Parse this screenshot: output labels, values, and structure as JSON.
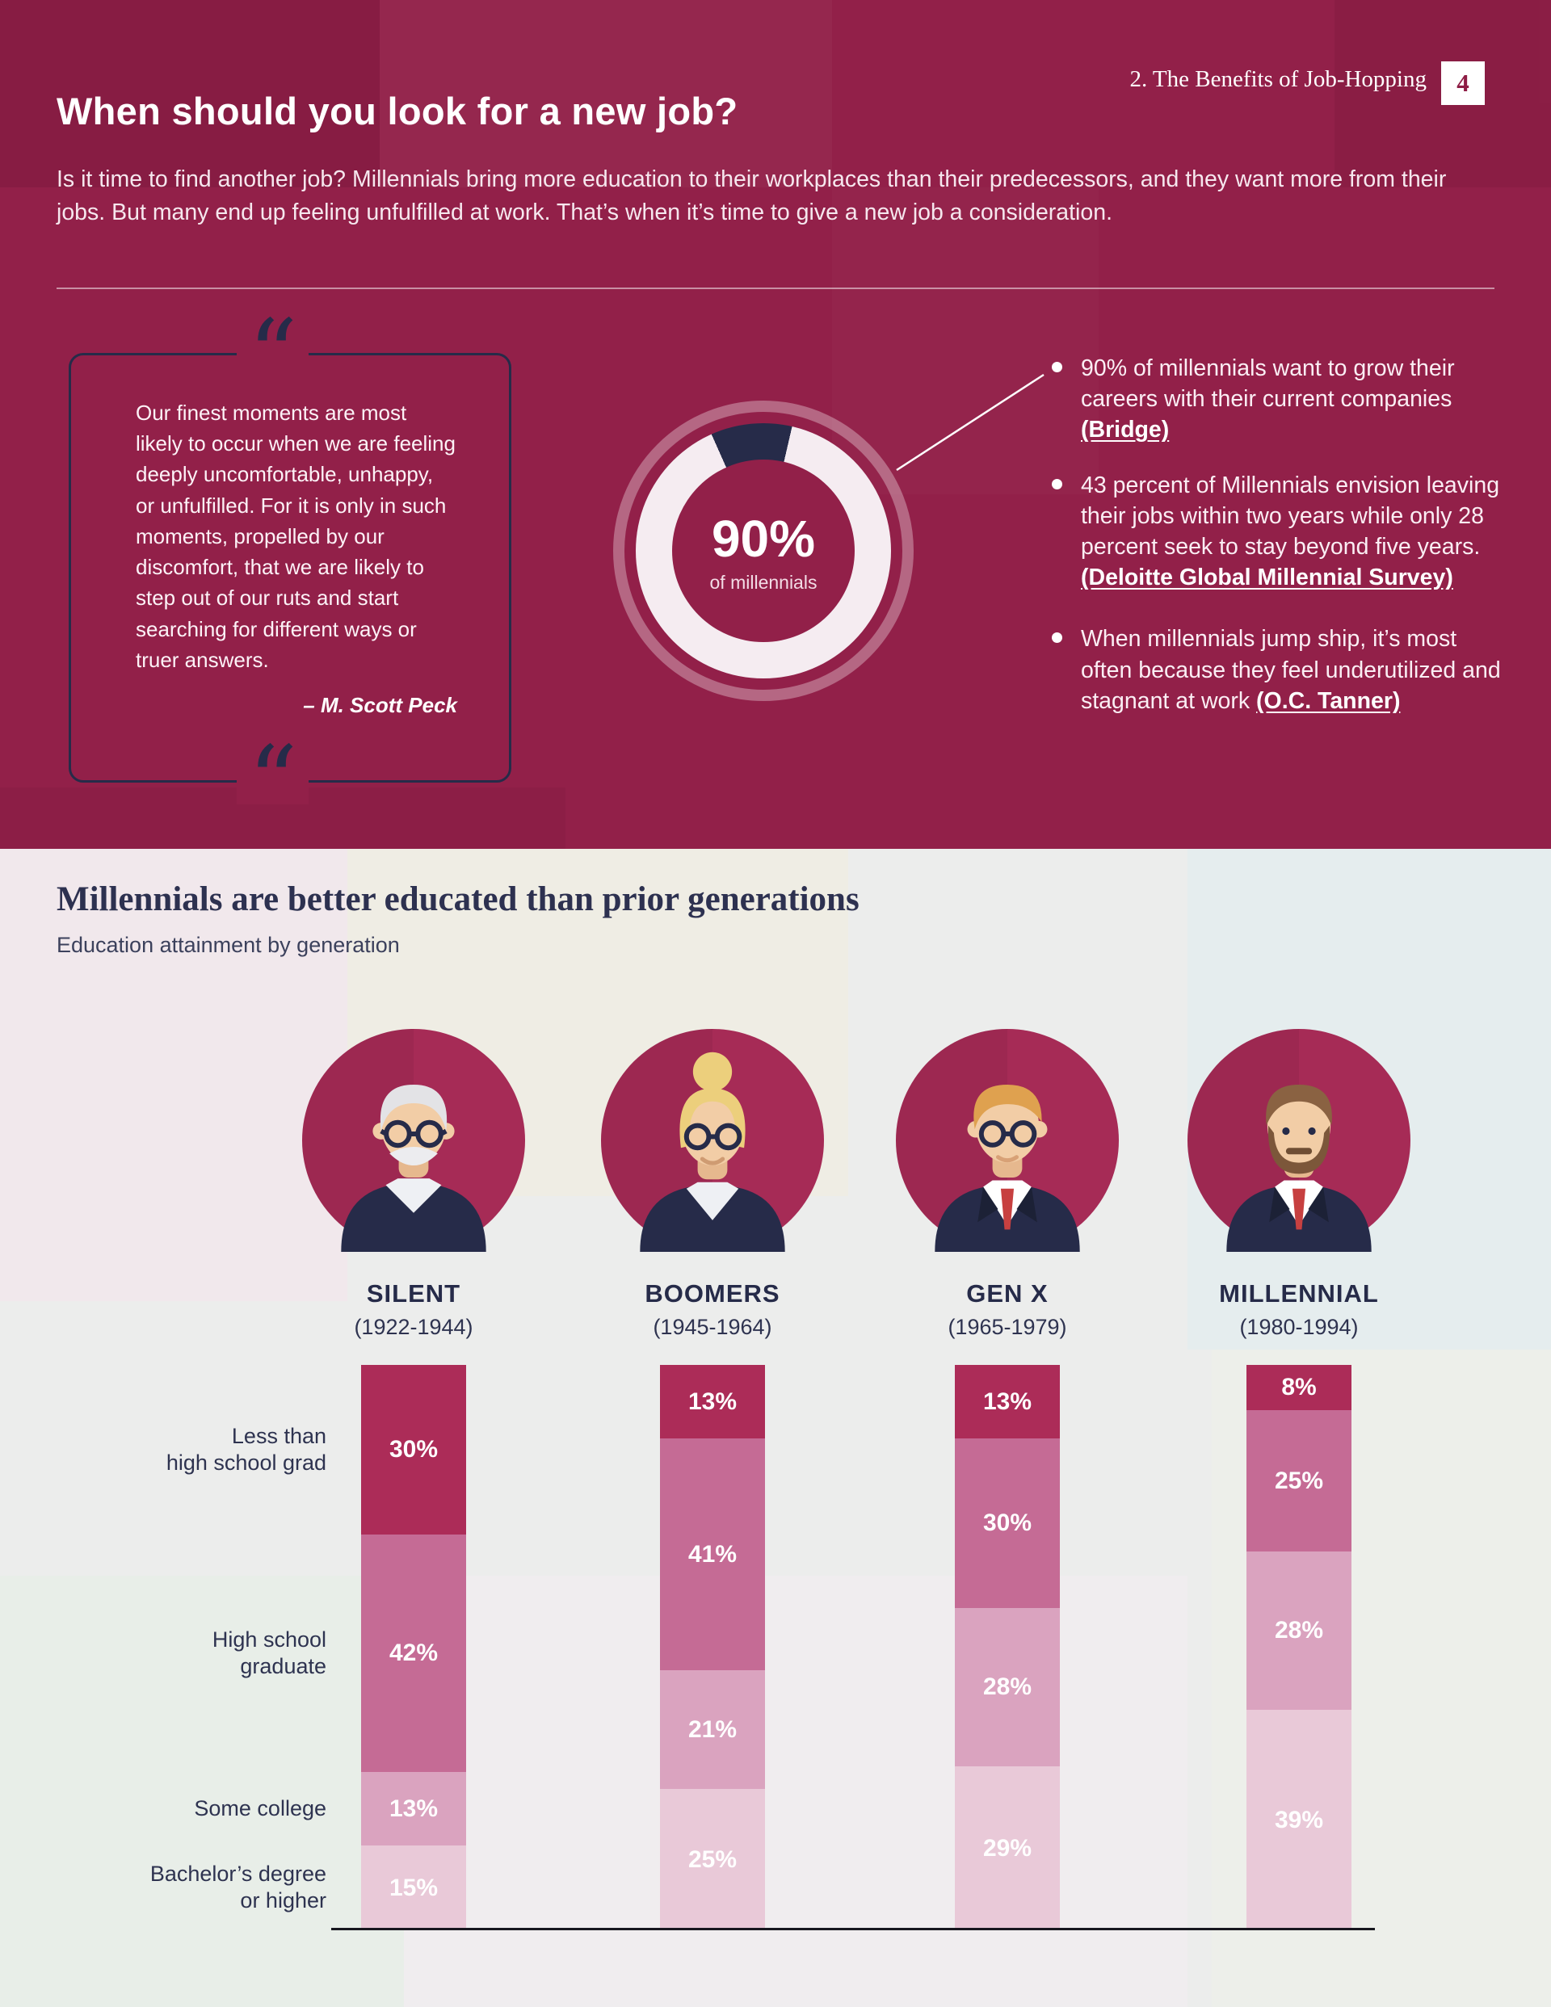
{
  "header": {
    "section_label": "2. The Benefits of Job-Hopping",
    "page_number": "4"
  },
  "hero": {
    "title": "When should you look for a new job?",
    "intro": "Is it time to find another job? Millennials bring more education to their workplaces than their predecessors, and they want more from their jobs. But many end up feeling unfulfilled at work. That’s when it’s time to give a new job a consideration."
  },
  "quote": {
    "mark": "“",
    "text": "Our finest moments are most likely to occur when we are feeling deeply uncomfortable, unhappy, or unfulfilled. For it is only in such moments, propelled by our discomfort, that we are likely to step out of our ruts and start searching for different ways or truer answers.",
    "attribution": "– M. Scott Peck"
  },
  "bullets": [
    {
      "text": "90% of millennials want to grow their careers with their current companies ",
      "link": "(Bridge)"
    },
    {
      "text": "43 percent of Millennials envision leaving their jobs within two years while only 28 percent seek to stay beyond five years. ",
      "link": "(Deloitte Global Millennial Survey)"
    },
    {
      "text": "When millennials jump ship, it’s most often because they feel underutilized and stagnant at work ",
      "link": "(O.C. Tanner)"
    }
  ],
  "education": {
    "heading": "Millennials are better educated than prior generations",
    "subheading": "Education attainment by generation"
  },
  "chart_data": [
    {
      "type": "pie",
      "subtype": "donut",
      "center_label": "90%",
      "center_sublabel": "of millennials",
      "slices": [
        {
          "label": "millennials who want to grow their careers with their current companies",
          "value": 90,
          "color": "#f5ecf1"
        },
        {
          "label": "other",
          "value": 10,
          "color": "#262b49"
        }
      ]
    },
    {
      "type": "bar",
      "stacked": true,
      "title": "Millennials are better educated than prior generations",
      "subtitle": "Education attainment by generation",
      "categories": [
        "SILENT",
        "BOOMERS",
        "GEN X",
        "MILLENNIAL"
      ],
      "category_years": [
        "(1922-1944)",
        "(1945-1964)",
        "(1965-1979)",
        "(1980-1994)"
      ],
      "row_labels": [
        [
          "Less than",
          "high school grad"
        ],
        [
          "High school",
          "graduate"
        ],
        [
          "Some college"
        ],
        [
          "Bachelor’s degree",
          "or higher"
        ]
      ],
      "series": [
        {
          "name": "Less than high school grad",
          "color": "#ac2c58",
          "values": [
            30,
            13,
            13,
            8
          ]
        },
        {
          "name": "High school graduate",
          "color": "#c56b95",
          "values": [
            42,
            41,
            30,
            25
          ]
        },
        {
          "name": "Some college",
          "color": "#daa3bf",
          "values": [
            13,
            21,
            28,
            28
          ]
        },
        {
          "name": "Bachelor’s degree or higher",
          "color": "#e9c9d8",
          "values": [
            15,
            25,
            29,
            39
          ]
        }
      ],
      "unit": "%",
      "ylim": [
        0,
        100
      ]
    }
  ]
}
